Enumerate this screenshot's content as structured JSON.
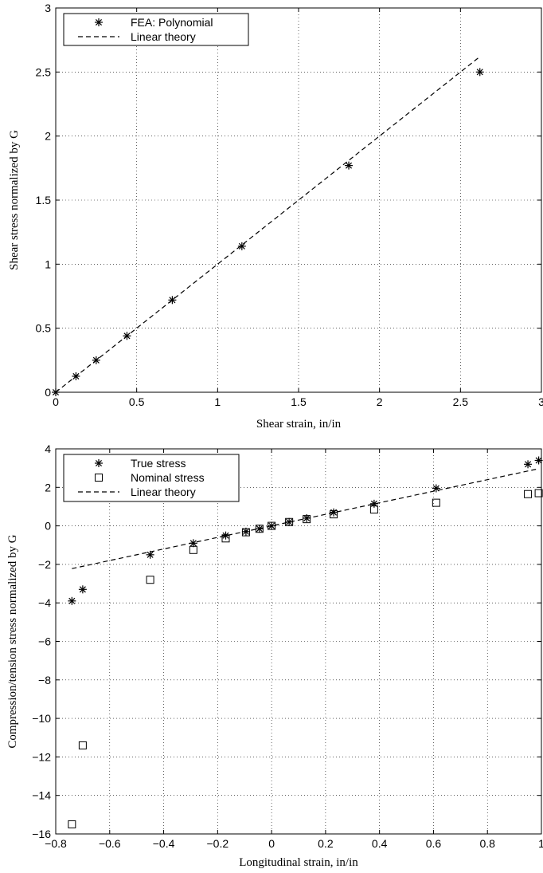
{
  "chart_data": [
    {
      "type": "scatter",
      "title": "",
      "xlabel": "Shear strain, in/in",
      "ylabel": "Shear stress normalized by G",
      "xlim": [
        0,
        3
      ],
      "ylim": [
        0,
        3
      ],
      "xticks": [
        0,
        0.5,
        1,
        1.5,
        2,
        2.5,
        3
      ],
      "yticks": [
        0,
        0.5,
        1,
        1.5,
        2,
        2.5,
        3
      ],
      "xtick_labels": [
        "0",
        "0.5",
        "1",
        "1.5",
        "2",
        "2.5",
        "3"
      ],
      "ytick_labels": [
        "0",
        "0.5",
        "1",
        "1.5",
        "2",
        "2.5",
        "3"
      ],
      "grid": true,
      "legend_position": "top-left",
      "series": [
        {
          "name": "FEA: Polynomial",
          "kind": "scatter",
          "marker": "asterisk",
          "x": [
            0,
            0.125,
            0.25,
            0.44,
            0.72,
            1.15,
            1.81,
            2.62
          ],
          "y": [
            0,
            0.125,
            0.25,
            0.44,
            0.72,
            1.14,
            1.77,
            2.5
          ]
        },
        {
          "name": "Linear theory",
          "kind": "line",
          "style": "dashed",
          "x": [
            0,
            2.62
          ],
          "y": [
            0,
            2.62
          ]
        }
      ]
    },
    {
      "type": "scatter",
      "title": "",
      "xlabel": "Longitudinal strain, in/in",
      "ylabel": "Compression/tension stress normalized by G",
      "xlim": [
        -0.8,
        1
      ],
      "ylim": [
        -16,
        4
      ],
      "xticks": [
        -0.8,
        -0.6,
        -0.4,
        -0.2,
        0,
        0.2,
        0.4,
        0.6,
        0.8,
        1
      ],
      "yticks": [
        -16,
        -14,
        -12,
        -10,
        -8,
        -6,
        -4,
        -2,
        0,
        2,
        4
      ],
      "xtick_labels": [
        "−0.8",
        "−0.6",
        "−0.4",
        "−0.2",
        "0",
        "0.2",
        "0.4",
        "0.6",
        "0.8",
        "1"
      ],
      "ytick_labels": [
        "−16",
        "−14",
        "−12",
        "−10",
        "−8",
        "−6",
        "−4",
        "−2",
        "0",
        "2",
        "4"
      ],
      "grid": true,
      "legend_position": "top-left",
      "series": [
        {
          "name": "True stress",
          "kind": "scatter",
          "marker": "asterisk",
          "x": [
            -0.74,
            -0.7,
            -0.45,
            -0.29,
            -0.17,
            -0.095,
            -0.045,
            0,
            0.065,
            0.13,
            0.23,
            0.38,
            0.61,
            0.95,
            0.99
          ],
          "y": [
            -3.9,
            -3.3,
            -1.5,
            -0.9,
            -0.5,
            -0.3,
            -0.15,
            0,
            0.2,
            0.4,
            0.7,
            1.15,
            1.95,
            3.2,
            3.4
          ]
        },
        {
          "name": "Nominal stress",
          "kind": "scatter",
          "marker": "square",
          "x": [
            -0.74,
            -0.7,
            -0.45,
            -0.29,
            -0.17,
            -0.095,
            -0.045,
            0,
            0.065,
            0.13,
            0.23,
            0.38,
            0.61,
            0.95,
            0.99
          ],
          "y": [
            -15.5,
            -11.4,
            -2.8,
            -1.25,
            -0.65,
            -0.33,
            -0.15,
            0,
            0.2,
            0.35,
            0.6,
            0.85,
            1.2,
            1.65,
            1.7
          ]
        },
        {
          "name": "Linear theory",
          "kind": "line",
          "style": "dashed",
          "x": [
            -0.74,
            0.99
          ],
          "y": [
            -2.22,
            2.97
          ]
        }
      ]
    }
  ]
}
